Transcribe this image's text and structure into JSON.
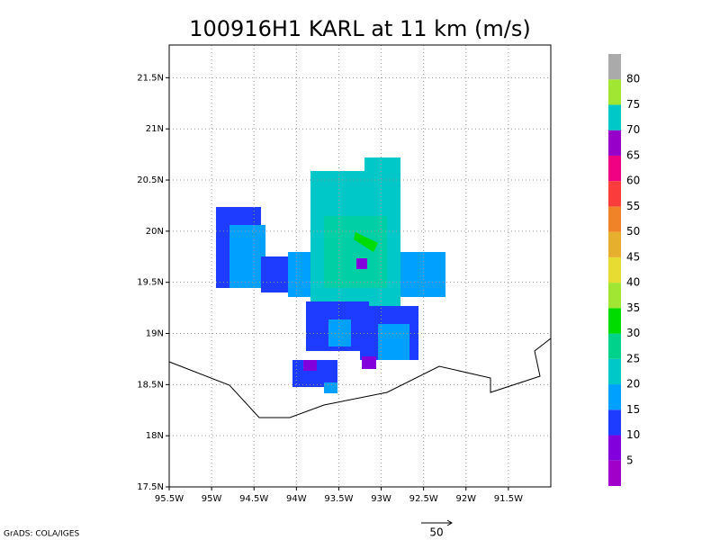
{
  "map": {
    "title": "100916H1 KARL at 11 km (m/s)",
    "xlim": [
      -95.5,
      -91.0
    ],
    "ylim": [
      17.5,
      21.82
    ],
    "xticks": [
      {
        "value": -95.5,
        "label": "95.5W"
      },
      {
        "value": -95,
        "label": "95W"
      },
      {
        "value": -94.5,
        "label": "94.5W"
      },
      {
        "value": -94,
        "label": "94W"
      },
      {
        "value": -93.5,
        "label": "93.5W"
      },
      {
        "value": -93,
        "label": "93W"
      },
      {
        "value": -92.5,
        "label": "92.5W"
      },
      {
        "value": -92,
        "label": "92W"
      },
      {
        "value": -91.5,
        "label": "91.5W"
      }
    ],
    "yticks": [
      {
        "value": 17.5,
        "label": "17.5N"
      },
      {
        "value": 18,
        "label": "18N"
      },
      {
        "value": 18.5,
        "label": "18.5N"
      },
      {
        "value": 19,
        "label": "19N"
      },
      {
        "value": 19.5,
        "label": "19.5N"
      },
      {
        "value": 20,
        "label": "20N"
      },
      {
        "value": 20.5,
        "label": "20.5N"
      },
      {
        "value": 21,
        "label": "21N"
      },
      {
        "value": 21.5,
        "label": "21.5N"
      }
    ],
    "grid": true,
    "colorbar": {
      "levels": [
        5,
        10,
        15,
        20,
        25,
        30,
        35,
        40,
        45,
        50,
        55,
        60,
        65,
        70,
        75,
        80
      ],
      "colors": [
        "#a000c8",
        "#8200dc",
        "#1e3cff",
        "#00a0ff",
        "#00c8c8",
        "#00d28c",
        "#00dc00",
        "#a0e632",
        "#e6dc32",
        "#e6af2d",
        "#f08228",
        "#fa3c3c",
        "#f00082",
        "#9600c8",
        "#00c8c8",
        "#a0e632",
        "#aaaaaa"
      ]
    },
    "vector_scale_label": "50",
    "credit": "GrADS: COLA/IGES"
  }
}
